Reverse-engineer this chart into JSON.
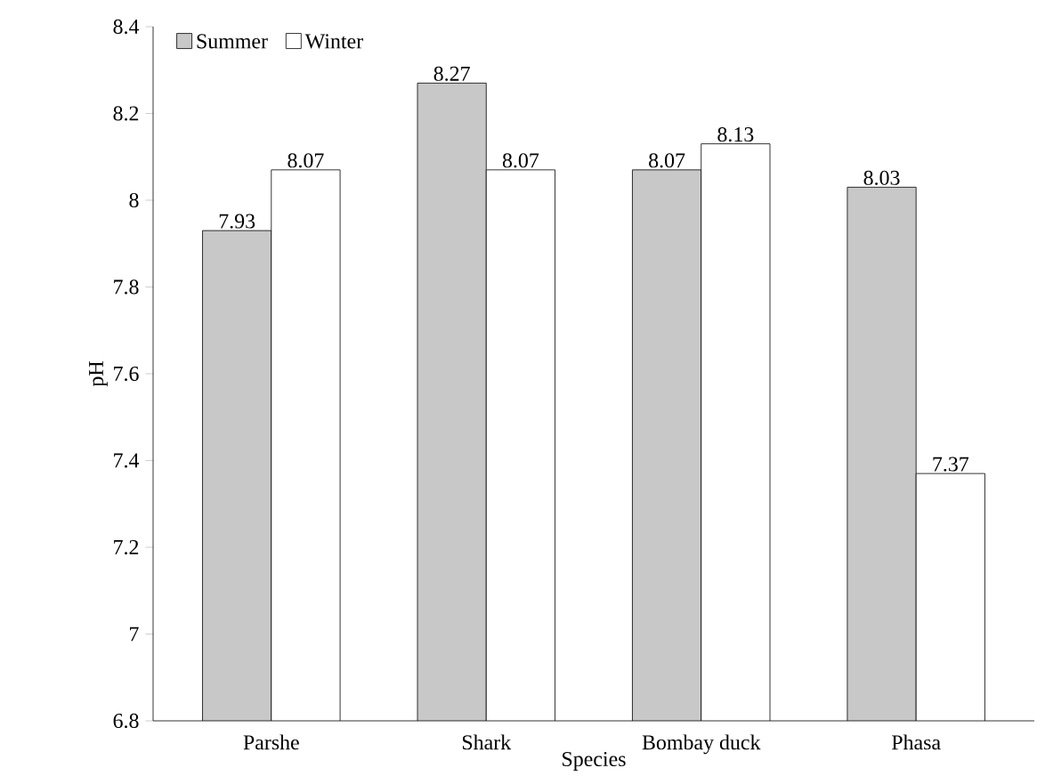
{
  "chart_data": {
    "type": "bar",
    "xlabel": "Species",
    "ylabel": "pH",
    "categories": [
      "Parshe",
      "Shark",
      "Bombay duck",
      "Phasa"
    ],
    "series": [
      {
        "name": "Summer",
        "color": "#c8c8c8",
        "values": [
          7.93,
          8.27,
          8.07,
          8.03
        ]
      },
      {
        "name": "Winter",
        "color": "#ffffff",
        "values": [
          8.07,
          8.07,
          8.13,
          7.37
        ]
      }
    ],
    "ylim": [
      6.8,
      8.4
    ],
    "yticks": [
      6.8,
      7,
      7.2,
      7.4,
      7.6,
      7.8,
      8,
      8.2,
      8.4
    ],
    "data_labels": true,
    "legend": "top left",
    "grid": false
  }
}
